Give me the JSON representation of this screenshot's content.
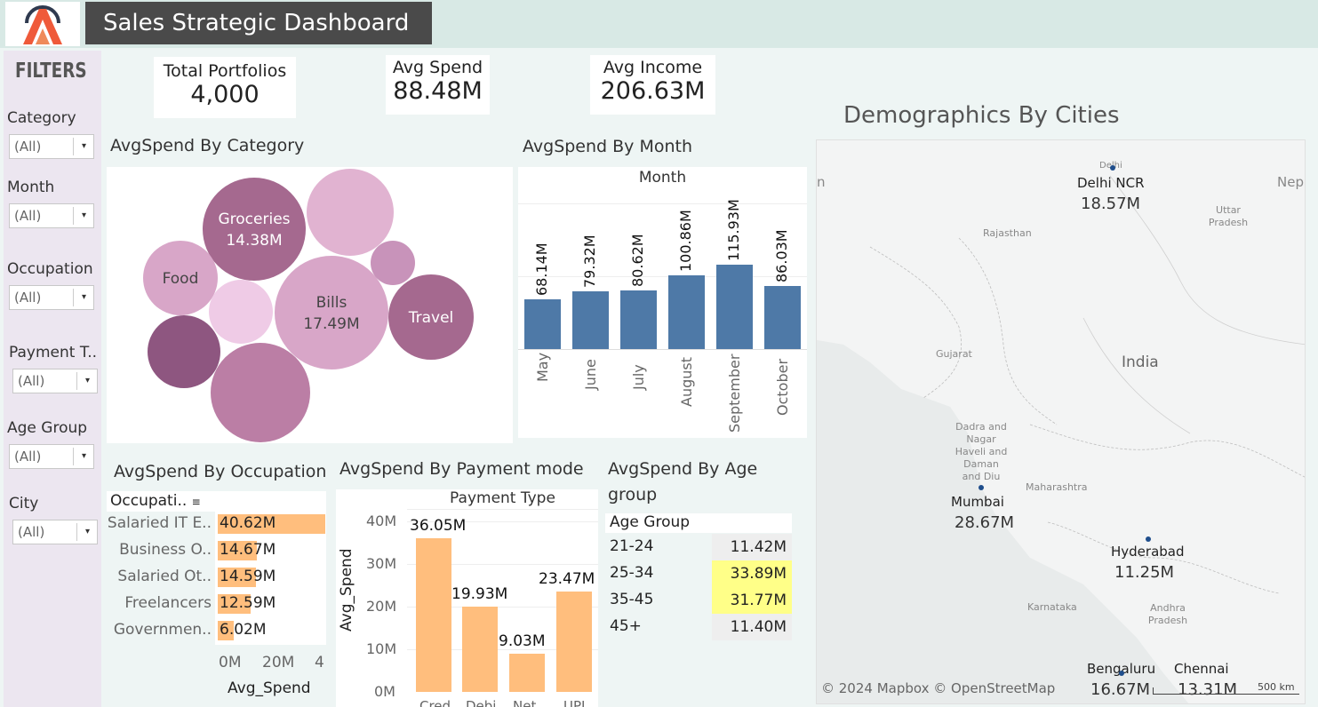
{
  "header": {
    "title": "Sales Strategic Dashboard",
    "logo_colors": [
      "#ef5a3a",
      "#2f3a4f"
    ]
  },
  "filters": {
    "title": "FILTERS",
    "items": [
      {
        "label": "Category",
        "value": "(All)"
      },
      {
        "label": "Month",
        "value": "(All)"
      },
      {
        "label": "Occupation",
        "value": "(All)"
      },
      {
        "label": "Payment T..",
        "value": "(All)"
      },
      {
        "label": "Age Group",
        "value": "(All)"
      },
      {
        "label": "City",
        "value": "(All)"
      }
    ]
  },
  "kpis": [
    {
      "label": "Total Portfolios",
      "value": "4,000"
    },
    {
      "label": "Avg Spend",
      "value": "88.48M"
    },
    {
      "label": "Avg Income",
      "value": "206.63M"
    }
  ],
  "titles": {
    "category": "AvgSpend By Category",
    "month": "AvgSpend By Month",
    "occupation": "AvgSpend By Occupation",
    "payment": "AvgSpend By Payment mode",
    "age_line1": "AvgSpend By Age",
    "age_line2": "group",
    "map": "Demographics By Cities"
  },
  "chart_data": [
    {
      "type": "bubble",
      "title": "AvgSpend By Category",
      "bubbles": [
        {
          "name": "Bills",
          "label": "17.49M",
          "color": "#d8a6c8"
        },
        {
          "name": "Groceries",
          "label": "14.38M",
          "color": "#a5698f"
        },
        {
          "name": "Travel",
          "label": "",
          "color": "#a5698f"
        },
        {
          "name": "Food",
          "label": "",
          "color": "#d8a6c8"
        },
        {
          "name": "",
          "label": "",
          "color": "#e1b3d1"
        },
        {
          "name": "",
          "label": "",
          "color": "#bb7ea5"
        },
        {
          "name": "",
          "label": "",
          "color": "#8e5680"
        },
        {
          "name": "",
          "label": "",
          "color": "#efcbe6"
        },
        {
          "name": "",
          "label": "",
          "color": "#c893ba"
        }
      ]
    },
    {
      "type": "bar",
      "title": "AvgSpend By Month",
      "header": "Month",
      "categories": [
        "May",
        "June",
        "July",
        "August",
        "September",
        "October"
      ],
      "values": [
        68.14,
        79.32,
        80.62,
        100.86,
        115.93,
        86.03
      ],
      "labels": [
        "68.14M",
        "79.32M",
        "80.62M",
        "100.86M",
        "115.93M",
        "86.03M"
      ],
      "color": "#4e79a7"
    },
    {
      "type": "bar",
      "orientation": "horizontal",
      "title": "AvgSpend By Occupation",
      "header": "Occupati..",
      "categories": [
        "Salaried IT E..",
        "Business O..",
        "Salaried Ot..",
        "Freelancers",
        "Governmen.."
      ],
      "values": [
        40.62,
        14.67,
        14.59,
        12.59,
        6.02
      ],
      "labels": [
        "40.62M",
        "14.67M",
        "14.59M",
        "12.59M",
        "6.02M"
      ],
      "xticks": [
        "0M",
        "20M",
        "4"
      ],
      "xlabel": "Avg_Spend",
      "color": "#ffbe7d"
    },
    {
      "type": "bar",
      "title": "AvgSpend By Payment mode",
      "header": "Payment Type",
      "categories": [
        "Cred..",
        "Debi..",
        "Net..",
        "UPI"
      ],
      "values": [
        36.05,
        19.93,
        9.03,
        23.47
      ],
      "labels": [
        "36.05M",
        "19.93M",
        "9.03M",
        "23.47M"
      ],
      "yticks": [
        "0M",
        "10M",
        "20M",
        "30M",
        "40M"
      ],
      "ylabel": "Avg_Spend",
      "ylim": [
        0,
        40
      ],
      "color": "#ffbe7d"
    },
    {
      "type": "table",
      "title": "AvgSpend By Age group",
      "header": "Age Group",
      "rows": [
        {
          "group": "21-24",
          "value": "11.42M",
          "highlight": "#eeeeee"
        },
        {
          "group": "25-34",
          "value": "33.89M",
          "highlight": "#ffff88"
        },
        {
          "group": "35-45",
          "value": "31.77M",
          "highlight": "#ffff88"
        },
        {
          "group": "45+",
          "value": "11.40M",
          "highlight": "#eeeeee"
        }
      ]
    }
  ],
  "map": {
    "attribution": "© 2024 Mapbox © OpenStreetMap",
    "scale": "500 km",
    "regions": [
      "Rajasthan",
      "Uttar Pradesh",
      "Gujarat",
      "India",
      "Dadra and Nagar Haveli and Daman and Diu",
      "Maharashtra",
      "Karnataka",
      "Andhra Pradesh",
      "n",
      "Nep",
      "Delhi"
    ],
    "cities": [
      {
        "name": "Delhi NCR",
        "value": "18.57M"
      },
      {
        "name": "Mumbai",
        "value": "28.67M"
      },
      {
        "name": "Hyderabad",
        "value": "11.25M"
      },
      {
        "name": "Bengaluru",
        "value": "16.67M"
      },
      {
        "name": "Chennai",
        "value": "13.31M"
      }
    ]
  }
}
